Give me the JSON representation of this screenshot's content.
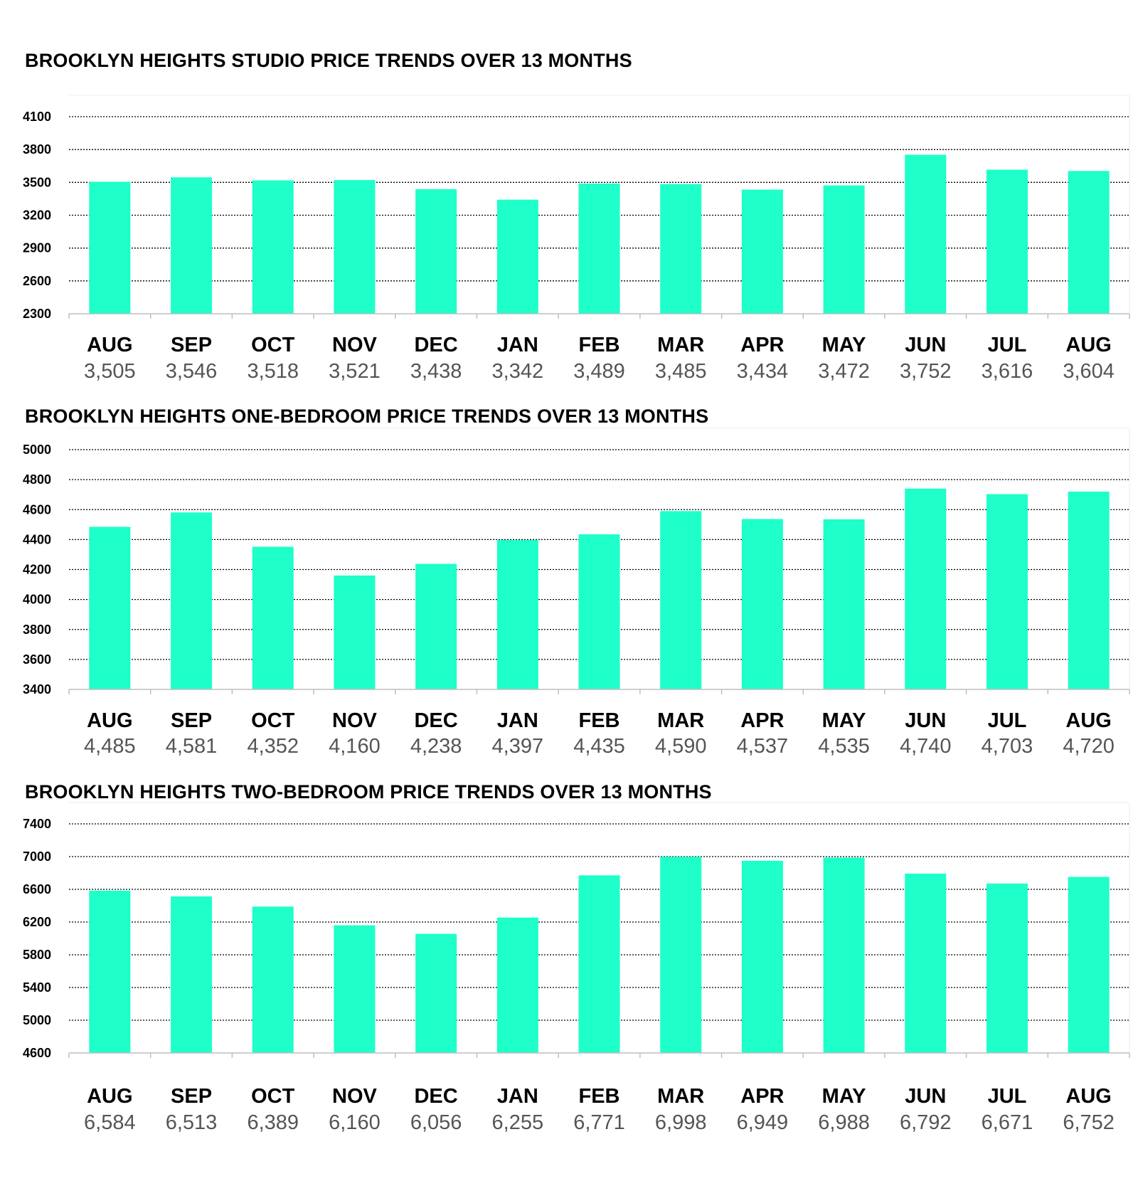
{
  "colors": {
    "bar": "#1effc9",
    "grid": "#000000",
    "axis": "#bfbfbf",
    "value_text": "#555555"
  },
  "chart_data": [
    {
      "type": "bar",
      "title": "BROOKLYN HEIGHTS STUDIO PRICE TRENDS OVER 13 MONTHS",
      "categories": [
        "AUG",
        "SEP",
        "OCT",
        "NOV",
        "DEC",
        "JAN",
        "FEB",
        "MAR",
        "APR",
        "MAY",
        "JUN",
        "JUL",
        "AUG"
      ],
      "values": [
        3505,
        3546,
        3518,
        3521,
        3438,
        3342,
        3489,
        3485,
        3434,
        3472,
        3752,
        3616,
        3604
      ],
      "value_labels": [
        "3,505",
        "3,546",
        "3,518",
        "3,521",
        "3,438",
        "3,342",
        "3,489",
        "3,485",
        "3,434",
        "3,472",
        "3,752",
        "3,616",
        "3,604"
      ],
      "yticks": [
        2300,
        2600,
        2900,
        3200,
        3500,
        3800,
        4100
      ],
      "ylim": [
        2300,
        4100
      ],
      "grid": true
    },
    {
      "type": "bar",
      "title": "BROOKLYN HEIGHTS ONE-BEDROOM PRICE TRENDS OVER 13 MONTHS",
      "categories": [
        "AUG",
        "SEP",
        "OCT",
        "NOV",
        "DEC",
        "JAN",
        "FEB",
        "MAR",
        "APR",
        "MAY",
        "JUN",
        "JUL",
        "AUG"
      ],
      "values": [
        4485,
        4581,
        4352,
        4160,
        4238,
        4397,
        4435,
        4590,
        4537,
        4535,
        4740,
        4703,
        4720
      ],
      "value_labels": [
        "4,485",
        "4,581",
        "4,352",
        "4,160",
        "4,238",
        "4,397",
        "4,435",
        "4,590",
        "4,537",
        "4,535",
        "4,740",
        "4,703",
        "4,720"
      ],
      "yticks": [
        3400,
        3600,
        3800,
        4000,
        4200,
        4400,
        4600,
        4800,
        5000
      ],
      "ylim": [
        3400,
        5000
      ],
      "grid": true
    },
    {
      "type": "bar",
      "title": "BROOKLYN HEIGHTS TWO-BEDROOM PRICE TRENDS OVER 13 MONTHS",
      "categories": [
        "AUG",
        "SEP",
        "OCT",
        "NOV",
        "DEC",
        "JAN",
        "FEB",
        "MAR",
        "APR",
        "MAY",
        "JUN",
        "JUL",
        "AUG"
      ],
      "values": [
        6584,
        6513,
        6389,
        6160,
        6056,
        6255,
        6771,
        6998,
        6949,
        6988,
        6792,
        6671,
        6752
      ],
      "value_labels": [
        "6,584",
        "6,513",
        "6,389",
        "6,160",
        "6,056",
        "6,255",
        "6,771",
        "6,998",
        "6,949",
        "6,988",
        "6,792",
        "6,671",
        "6,752"
      ],
      "yticks": [
        4600,
        5000,
        5400,
        5800,
        6200,
        6600,
        7000,
        7400
      ],
      "ylim": [
        4600,
        7400
      ],
      "grid": true
    }
  ]
}
